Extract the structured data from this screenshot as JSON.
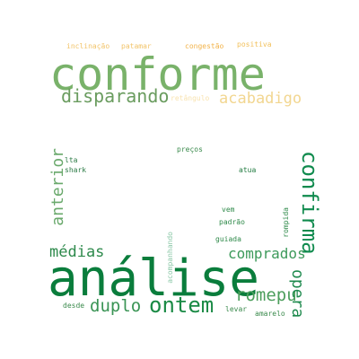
{
  "words": [
    {
      "text": "conforme",
      "color": "#79b26a"
    },
    {
      "text": "análise",
      "color": "#0a7d3c"
    },
    {
      "text": "disparando",
      "color": "#6a9c5f"
    },
    {
      "text": "acabadigo",
      "color": "#f2d690"
    },
    {
      "text": "confirma",
      "color": "#0f8a4d"
    },
    {
      "text": "ontem",
      "color": "#1a8a45"
    },
    {
      "text": "duplo",
      "color": "#3a9455"
    },
    {
      "text": "médias",
      "color": "#2e8a4c"
    },
    {
      "text": "comprados",
      "color": "#3d9a5b"
    },
    {
      "text": "romepu",
      "color": "#4c9e5c"
    },
    {
      "text": "anterior",
      "color": "#6aa96c"
    },
    {
      "text": "opera",
      "color": "#1f8a4e"
    },
    {
      "text": "inclinação",
      "color": "#f2c46a"
    },
    {
      "text": "patamar",
      "color": "#f2c46a"
    },
    {
      "text": "congestão",
      "color": "#f2b34a"
    },
    {
      "text": "positiva",
      "color": "#f2c05b"
    },
    {
      "text": "retângulo",
      "color": "#f8e3b0"
    },
    {
      "text": "preços",
      "color": "#3a8a4c"
    },
    {
      "text": "atua",
      "color": "#1f7a3f"
    },
    {
      "text": "lta",
      "color": "#2a7a44"
    },
    {
      "text": "shark",
      "color": "#2a7a44"
    },
    {
      "text": "vem",
      "color": "#2f8a4a"
    },
    {
      "text": "padrão",
      "color": "#2f8a4a"
    },
    {
      "text": "rompida",
      "color": "#2f8a4a"
    },
    {
      "text": "guiada",
      "color": "#2f8a4a"
    },
    {
      "text": "acompanhando",
      "color": "#8cc8a8"
    },
    {
      "text": "desde",
      "color": "#3a8a4c"
    },
    {
      "text": "levar",
      "color": "#3a8a4c"
    },
    {
      "text": "amarelo",
      "color": "#3a8a4c"
    }
  ]
}
